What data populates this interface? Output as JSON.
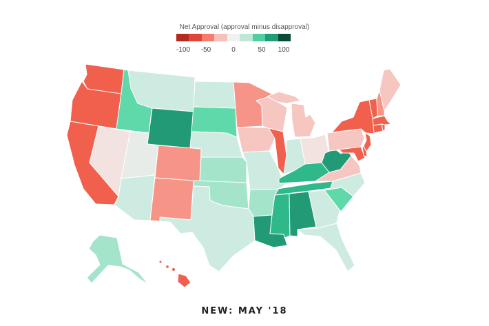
{
  "legend": {
    "title": "Net Approval (approval minus disapproval)",
    "ticks": [
      "-100",
      "-50",
      "0",
      "50",
      "100"
    ],
    "colors": [
      "#b52a1f",
      "#e0453a",
      "#f57d6c",
      "#f5c1ba",
      "#f1f1f1",
      "#bfe6d6",
      "#4fcf9f",
      "#1f9e75",
      "#0a4a3b"
    ]
  },
  "caption": "NEW: MAY '18",
  "palette": {
    "strong_neg": "#f0604d",
    "mid_neg": "#f69488",
    "light_neg": "#f6c6c0",
    "very_light_neg": "#f2e2e0",
    "neutral": "#e7ece9",
    "light_pos": "#cdebe0",
    "mid_pos": "#a3e4cb",
    "pos": "#5fd9aa",
    "strong_pos": "#2fb98b",
    "very_strong_pos": "#229a75",
    "border": "#ffffff"
  }
}
